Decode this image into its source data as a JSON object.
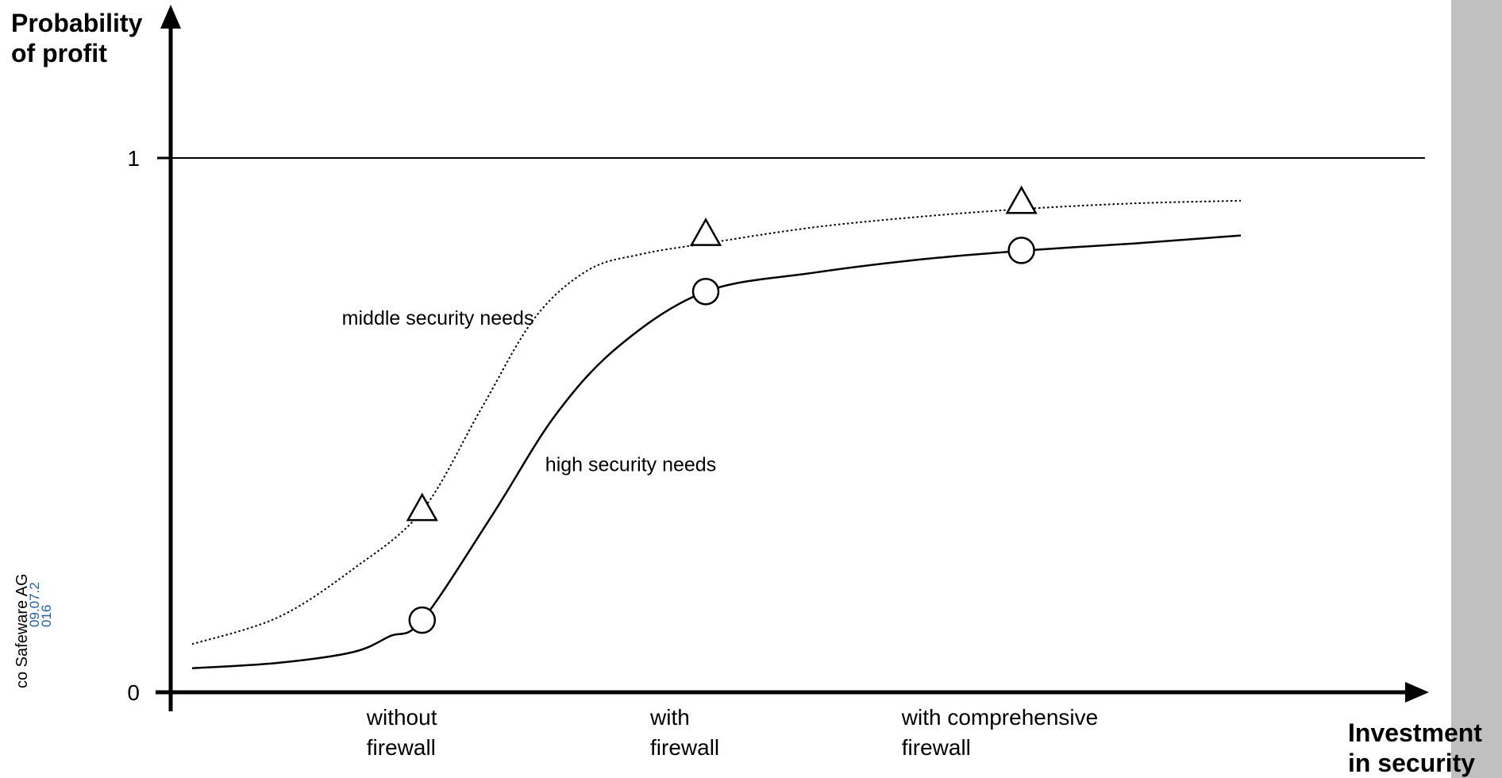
{
  "footer": {
    "company": "co Safeware AG",
    "stamp_line1": "09.07.2",
    "stamp_line2": "016"
  },
  "colors": {
    "axis": "#000000",
    "sidebar": "#c0c0c0",
    "stamp": "#1f5fa6"
  },
  "chart_data": {
    "type": "line",
    "ylabel": "Probability of profit",
    "xlabel": "Investment in security",
    "ylim": [
      0,
      1.25
    ],
    "xlim": [
      0,
      1.1
    ],
    "y_ticks": [
      {
        "value": 0,
        "label": "0"
      },
      {
        "value": 1,
        "label": "1"
      }
    ],
    "x_categories": [
      {
        "x": 0.235,
        "line1": "without",
        "line2": "firewall"
      },
      {
        "x": 0.5,
        "line1": "with",
        "line2": "firewall"
      },
      {
        "x": 0.735,
        "line1": "with comprehensive",
        "line2": "firewall"
      }
    ],
    "reference_line": {
      "y": 1
    },
    "series": [
      {
        "name": "middle security needs",
        "style": "dotted",
        "marker": "triangle",
        "label_at": {
          "x": 0.16,
          "y": 0.7
        },
        "points": [
          [
            0.02,
            0.09
          ],
          [
            0.1,
            0.14
          ],
          [
            0.17,
            0.23
          ],
          [
            0.235,
            0.34
          ],
          [
            0.29,
            0.53
          ],
          [
            0.34,
            0.7
          ],
          [
            0.39,
            0.79
          ],
          [
            0.44,
            0.82
          ],
          [
            0.5,
            0.84
          ],
          [
            0.6,
            0.87
          ],
          [
            0.7,
            0.89
          ],
          [
            0.8,
            0.905
          ],
          [
            0.9,
            0.915
          ],
          [
            1.0,
            0.92
          ]
        ],
        "markers": [
          [
            0.235,
            0.34
          ],
          [
            0.5,
            0.855
          ],
          [
            0.795,
            0.915
          ]
        ]
      },
      {
        "name": "high security needs",
        "style": "solid",
        "marker": "circle",
        "label_at": {
          "x": 0.35,
          "y": 0.426
        },
        "points": [
          [
            0.02,
            0.045
          ],
          [
            0.1,
            0.055
          ],
          [
            0.17,
            0.075
          ],
          [
            0.205,
            0.105
          ],
          [
            0.235,
            0.135
          ],
          [
            0.3,
            0.33
          ],
          [
            0.36,
            0.52
          ],
          [
            0.42,
            0.65
          ],
          [
            0.5,
            0.75
          ],
          [
            0.6,
            0.785
          ],
          [
            0.7,
            0.81
          ],
          [
            0.8,
            0.827
          ],
          [
            0.9,
            0.84
          ],
          [
            1.0,
            0.855
          ]
        ],
        "markers": [
          [
            0.235,
            0.135
          ],
          [
            0.5,
            0.75
          ],
          [
            0.795,
            0.827
          ]
        ]
      }
    ]
  }
}
